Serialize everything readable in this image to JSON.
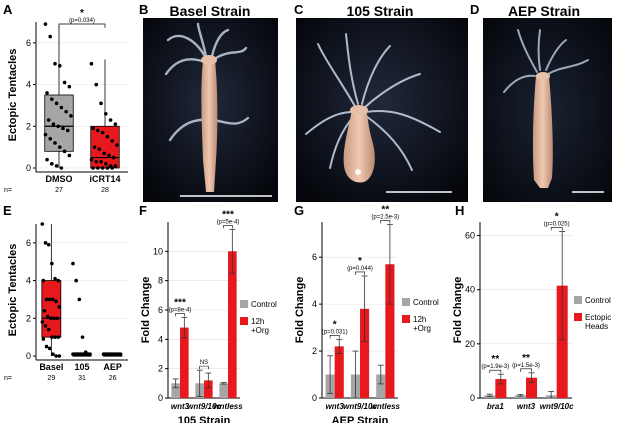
{
  "panels": {
    "A": {
      "letter": "A",
      "ylabel": "Ectopic Tentacles",
      "sig": "*",
      "pvalue": "(p=0.034)",
      "n_label": "n=",
      "yticks": [
        "0",
        "2",
        "4",
        "6"
      ]
    },
    "B": {
      "letter": "B",
      "title": "Basel Strain"
    },
    "C": {
      "letter": "C",
      "title": "105 Strain"
    },
    "D": {
      "letter": "D",
      "title": "AEP Strain"
    },
    "E": {
      "letter": "E",
      "ylabel": "Ectopic Tentacles",
      "n_label": "n=",
      "yticks": [
        "0",
        "2",
        "4",
        "6"
      ]
    },
    "F": {
      "letter": "F",
      "ylabel": "Fold Change",
      "subtitle": "105 Strain",
      "yticks": [
        "0",
        "2",
        "4",
        "6",
        "8",
        "10"
      ]
    },
    "G": {
      "letter": "G",
      "ylabel": "Fold Change",
      "subtitle": "AEP Strain",
      "yticks": [
        "0",
        "2",
        "4",
        "6"
      ]
    },
    "H": {
      "letter": "H",
      "ylabel": "Fold Change",
      "yticks": [
        "0",
        "20",
        "40",
        "60"
      ]
    }
  },
  "chart_data": [
    {
      "id": "A",
      "type": "box",
      "categories": [
        "DMSO",
        "iCRT14"
      ],
      "n": [
        "27",
        "28"
      ],
      "ylim": [
        0,
        7
      ],
      "boxes": [
        {
          "name": "DMSO",
          "q1": 0.8,
          "median": 2.0,
          "q3": 3.5,
          "whisker_low": 0,
          "whisker_high": 6.8,
          "color": "#a6a6a6",
          "points": [
            6.9,
            6.3,
            5.0,
            4.9,
            4.1,
            3.9,
            3.6,
            3.3,
            3.1,
            2.9,
            2.7,
            2.5,
            2.3,
            2.1,
            2.0,
            1.9,
            1.8,
            1.6,
            1.4,
            1.2,
            1.0,
            0.8,
            0.6,
            0.4,
            0.2,
            0.1,
            0.0
          ]
        },
        {
          "name": "iCRT14",
          "q1": 0,
          "median": 0.5,
          "q3": 2.0,
          "whisker_low": 0,
          "whisker_high": 5.2,
          "color": "#e8191c",
          "points": [
            5.0,
            4.0,
            3.1,
            2.6,
            2.3,
            2.1,
            1.9,
            1.8,
            1.7,
            1.5,
            1.3,
            1.1,
            1.0,
            0.9,
            0.7,
            0.6,
            0.5,
            0.4,
            0.3,
            0.3,
            0.2,
            0.1,
            0.1,
            0.0,
            0.0,
            0.0,
            0.0,
            0.0
          ]
        }
      ]
    },
    {
      "id": "E",
      "type": "box",
      "categories": [
        "Basel",
        "105",
        "AEP"
      ],
      "n": [
        "29",
        "31",
        "26"
      ],
      "ylim": [
        0,
        7
      ],
      "boxes": [
        {
          "name": "Basel",
          "q1": 1.0,
          "median": 2.0,
          "q3": 4.0,
          "whisker_low": 0,
          "whisker_high": 7.0,
          "color": "#e8191c",
          "points": [
            7.0,
            6.0,
            5.9,
            4.9,
            4.1,
            4.0,
            4.0,
            3.0,
            3.0,
            3.0,
            2.9,
            2.6,
            2.4,
            2.1,
            2.0,
            2.0,
            2.0,
            1.8,
            1.6,
            1.4,
            1.0,
            1.0,
            1.0,
            0.9,
            0.5,
            0.4,
            0.1,
            0.0,
            0.0
          ]
        },
        {
          "name": "105",
          "q1": 0,
          "median": 0,
          "q3": 0,
          "whisker_low": 0,
          "whisker_high": 0,
          "color": "#e8191c",
          "points": [
            4.9,
            4.0,
            3.0,
            1.0,
            0.2,
            0.1,
            0.1,
            0.1,
            0.1,
            0.1,
            0.1,
            0.1,
            0.1,
            0.1,
            0.1,
            0.1,
            0.1,
            0.1,
            0.1,
            0.1,
            0.1,
            0.1,
            0.1,
            0.1,
            0.1,
            0.1,
            0.1,
            0.1,
            0.1,
            0.1,
            0.1
          ]
        },
        {
          "name": "AEP",
          "q1": 0,
          "median": 0,
          "q3": 0,
          "whisker_low": 0,
          "whisker_high": 0,
          "color": "#e8191c",
          "points": [
            0.1,
            0.1,
            0.1,
            0.1,
            0.1,
            0.1,
            0.1,
            0.1,
            0.1,
            0.1,
            0.1,
            0.1,
            0.1,
            0.1,
            0.1,
            0.1,
            0.1,
            0.1,
            0.1,
            0.1,
            0.1,
            0.1,
            0.1,
            0.1,
            0.1,
            0.1
          ]
        }
      ]
    },
    {
      "id": "F",
      "type": "bar",
      "categories": [
        "wnt3",
        "wnt9/10c",
        "wntless"
      ],
      "ylim": [
        0,
        12
      ],
      "legend": [
        "Control",
        "12h\n+Org"
      ],
      "series": [
        {
          "name": "Control",
          "color": "#a6a6a6",
          "values": [
            1.0,
            1.0,
            1.0
          ],
          "err": [
            0.3,
            0.9,
            0.05
          ]
        },
        {
          "name": "12h +Org",
          "color": "#e8191c",
          "values": [
            4.8,
            1.2,
            10.0
          ],
          "err": [
            0.7,
            0.5,
            1.5
          ]
        }
      ],
      "annotations": [
        {
          "category": "wnt3",
          "sig": "***",
          "p": "(p=8e-4)"
        },
        {
          "category": "wnt9/10c",
          "sig": "NS",
          "p": ""
        },
        {
          "category": "wntless",
          "sig": "***",
          "p": "(p=5e-4)"
        }
      ]
    },
    {
      "id": "G",
      "type": "bar",
      "categories": [
        "wnt3",
        "wnt9/10c",
        "wntless"
      ],
      "ylim": [
        0,
        7.5
      ],
      "legend": [
        "Control",
        "12h\n+Org"
      ],
      "series": [
        {
          "name": "Control",
          "color": "#a6a6a6",
          "values": [
            1.0,
            1.0,
            1.0
          ],
          "err": [
            0.8,
            1.0,
            0.4
          ]
        },
        {
          "name": "12h +Org",
          "color": "#e8191c",
          "values": [
            2.2,
            3.8,
            5.7
          ],
          "err": [
            0.3,
            1.4,
            1.7
          ]
        }
      ],
      "annotations": [
        {
          "category": "wnt3",
          "sig": "*",
          "p": "(p=0.031)"
        },
        {
          "category": "wnt9/10c",
          "sig": "*",
          "p": "(p=0.044)"
        },
        {
          "category": "wntless",
          "sig": "**",
          "p": "(p=2.5e-3)"
        }
      ]
    },
    {
      "id": "H",
      "type": "bar",
      "categories": [
        "bra1",
        "wnt3",
        "wnt9/10c"
      ],
      "ylim": [
        0,
        65
      ],
      "legend": [
        "Control",
        "Ectopic\nHeads"
      ],
      "series": [
        {
          "name": "Control",
          "color": "#a6a6a6",
          "values": [
            1.0,
            1.0,
            1.0
          ],
          "err": [
            0.4,
            0.3,
            1.4
          ]
        },
        {
          "name": "Ectopic Heads",
          "color": "#e8191c",
          "values": [
            7.0,
            7.5,
            41.5
          ],
          "err": [
            1.8,
            1.8,
            20.0
          ]
        }
      ],
      "annotations": [
        {
          "category": "bra1",
          "sig": "**",
          "p": "(p=1.9e-3)"
        },
        {
          "category": "wnt3",
          "sig": "**",
          "p": "(p=1.5e-3)"
        },
        {
          "category": "wnt9/10c",
          "sig": "*",
          "p": "(p=0.025)"
        }
      ]
    }
  ]
}
